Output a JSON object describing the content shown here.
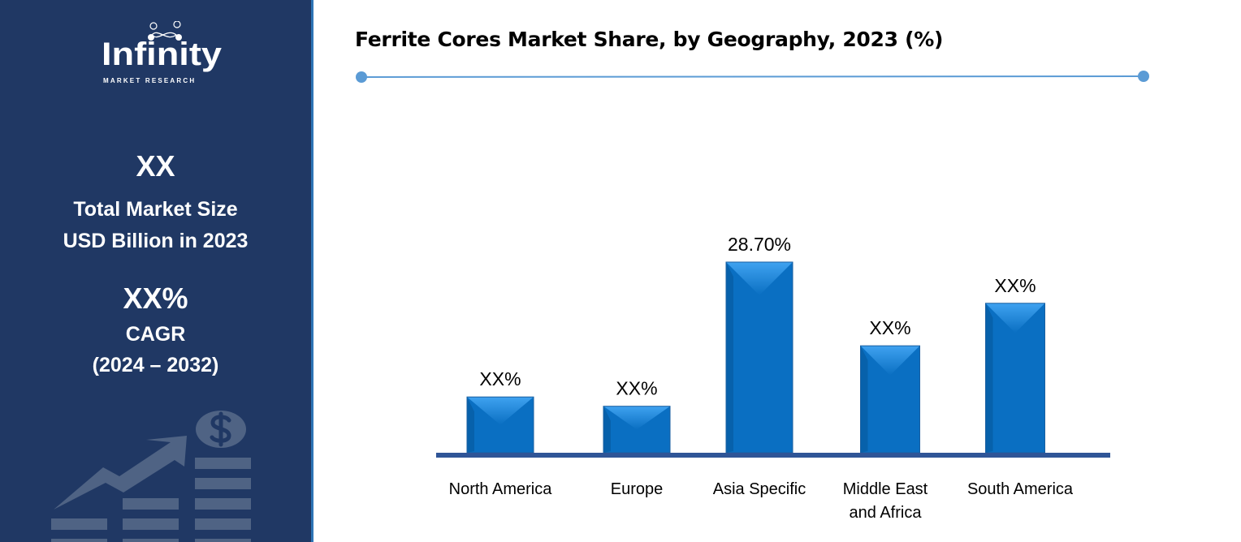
{
  "sidebar": {
    "logo": {
      "name": "Infinity",
      "tagline": "MARKET RESEARCH"
    },
    "market_size_value": "XX",
    "market_size_label_1": "Total Market Size",
    "market_size_label_2": "USD Billion in 2023",
    "cagr_value": "XX%",
    "cagr_label": "CAGR",
    "cagr_period": "(2024 – 2032)",
    "decoration_icon": "growth-chart-dollar-icon"
  },
  "colors": {
    "sidebar": "#203864",
    "bar": "#0070c0",
    "axis": "#2f5597",
    "accent_line": "#5b9bd5"
  },
  "chart_data": {
    "type": "bar",
    "title": "Ferrite Cores Market Share, by Geography, 2023 (%)",
    "categories": [
      "North America",
      "Europe",
      "Asia Specific",
      "Middle East and Africa",
      "South America"
    ],
    "category_lines": [
      [
        "North America"
      ],
      [
        "Europe"
      ],
      [
        "Asia Specific"
      ],
      [
        "Middle East",
        "and Africa"
      ],
      [
        "South America"
      ]
    ],
    "values": [
      8.4,
      7.0,
      28.7,
      16.1,
      22.5
    ],
    "data_labels": [
      "XX%",
      "XX%",
      "28.70%",
      "XX%",
      "XX%"
    ],
    "xlabel": "",
    "ylabel": "",
    "grid": false
  }
}
